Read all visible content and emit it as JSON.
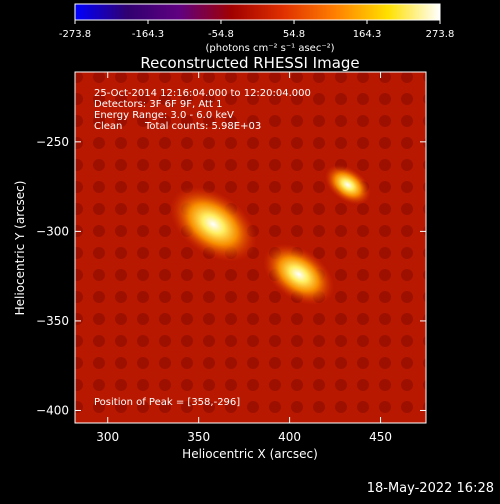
{
  "colorbar": {
    "tick_labels": [
      "-273.8",
      "-164.3",
      "-54.8",
      "54.8",
      "164.3",
      "273.8"
    ],
    "ticks": [
      -273.8,
      -164.3,
      -54.8,
      54.8,
      164.3,
      273.8
    ],
    "range": [
      -273.8,
      273.8
    ],
    "units": "(photons cm⁻² s⁻¹ asec⁻²)"
  },
  "chart_data": {
    "type": "heatmap",
    "title": "Reconstructed RHESSI Image",
    "xlabel": "Heliocentric X (arcsec)",
    "ylabel": "Heliocentric Y (arcsec)",
    "xlim": [
      282,
      475
    ],
    "ylim": [
      -407,
      -211
    ],
    "xticks": [
      300,
      350,
      400,
      450
    ],
    "yticks": [
      -250,
      -300,
      -350,
      -400
    ],
    "sources": [
      {
        "x": 358,
        "y": -296,
        "relative_intensity": 1.0
      },
      {
        "x": 405,
        "y": -324,
        "relative_intensity": 0.75
      },
      {
        "x": 432,
        "y": -274,
        "relative_intensity": 0.35
      }
    ],
    "peak": [
      358,
      -296
    ]
  },
  "annotations": {
    "time_range": "25-Oct-2014 12:16:04.000 to 12:20:04.000",
    "detectors": "Detectors: 3F 6F 9F, Att 1",
    "energy": "Energy Range: 3.0 - 6.0 keV",
    "clean_label": "Clean",
    "total_counts": "Total counts: 5.98E+03",
    "peak_text": "Position of Peak = [358,-296]"
  },
  "footer": {
    "timestamp": "18-May-2022 16:28"
  },
  "colors": {
    "colormap": [
      "#0000ff",
      "#300070",
      "#600080",
      "#a00000",
      "#e03000",
      "#ff8000",
      "#ffe000",
      "#ffffff"
    ]
  }
}
